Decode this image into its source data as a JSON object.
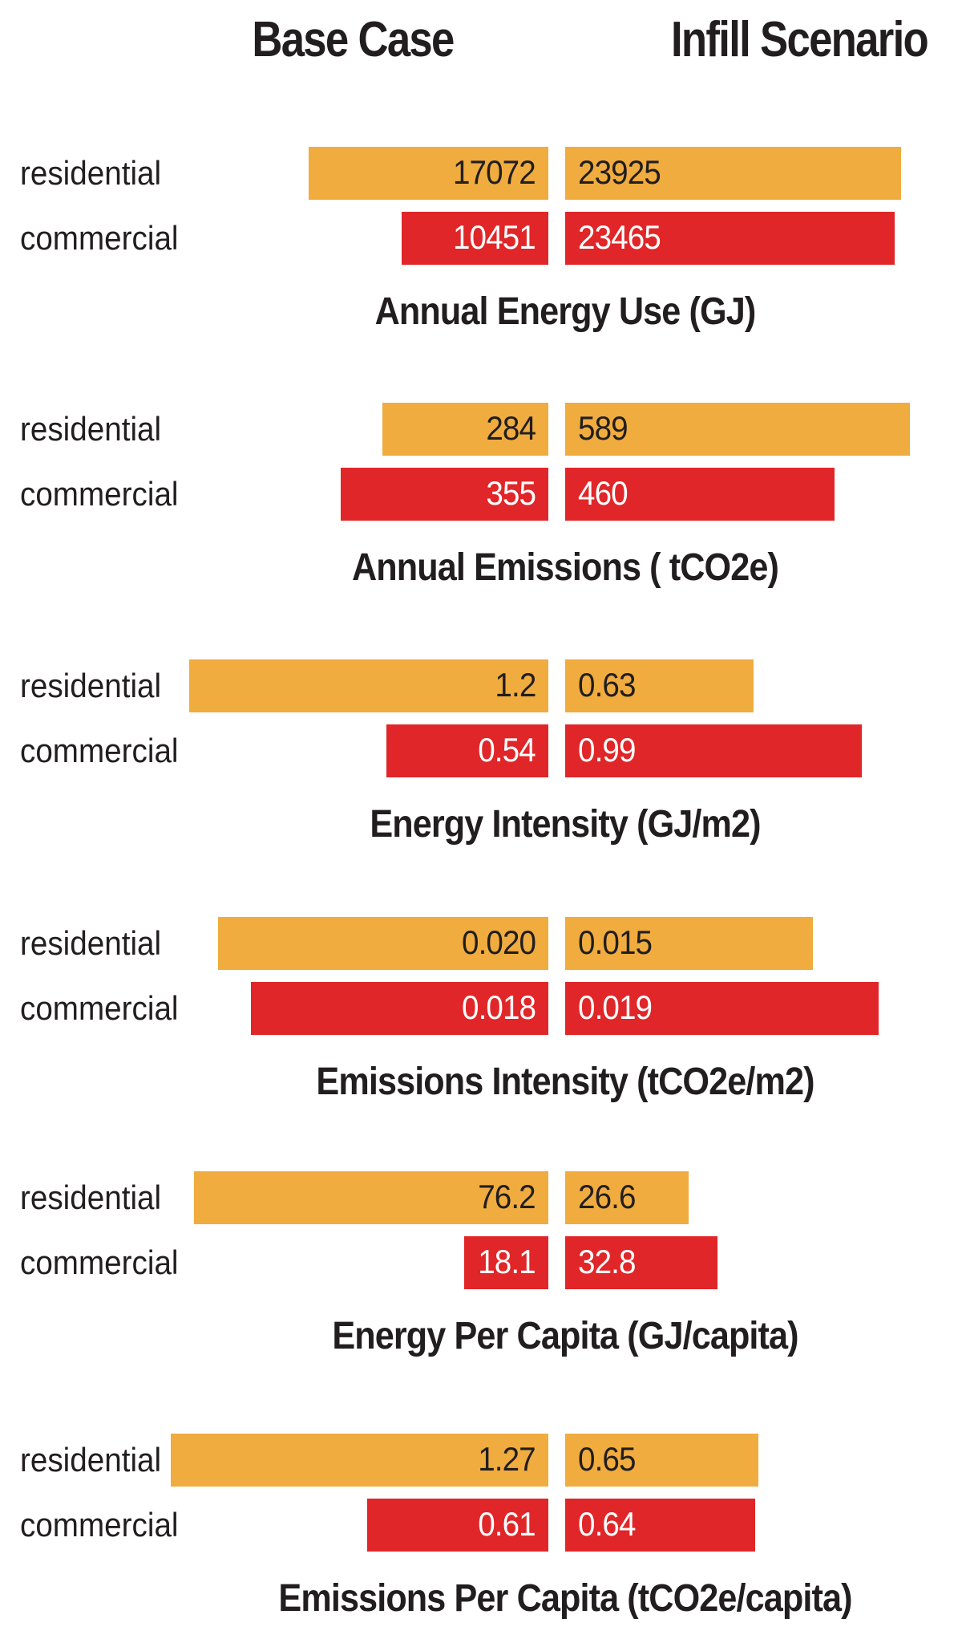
{
  "header": {
    "base_case": "Base Case",
    "infill_scenario": "Infill Scenario"
  },
  "colors": {
    "residential_bar": "#F0AC3F",
    "commercial_bar": "#E02628",
    "dark_text": "#221E1F",
    "light_text": "#FFFFFF"
  },
  "chart_data": {
    "type": "bar",
    "variant": "diverging-horizontal-comparison",
    "columns": [
      "Base Case",
      "Infill Scenario"
    ],
    "row_labels": [
      "residential",
      "commercial"
    ],
    "legend_position": "none",
    "grid": false,
    "layout_hint": "base-case bars grow leftward from center axis, infill bars grow rightward; each section independently scaled to its max value",
    "sections": [
      {
        "title": "Annual Energy Use (GJ)",
        "rows": [
          {
            "label": "residential",
            "base_case": {
              "value": 17072,
              "display": "17072"
            },
            "infill_scenario": {
              "value": 23925,
              "display": "23925"
            }
          },
          {
            "label": "commercial",
            "base_case": {
              "value": 10451,
              "display": "10451"
            },
            "infill_scenario": {
              "value": 23465,
              "display": "23465"
            }
          }
        ]
      },
      {
        "title": "Annual Emissions ( tCO2e)",
        "rows": [
          {
            "label": "residential",
            "base_case": {
              "value": 284,
              "display": "284"
            },
            "infill_scenario": {
              "value": 589,
              "display": "589"
            }
          },
          {
            "label": "commercial",
            "base_case": {
              "value": 355,
              "display": "355"
            },
            "infill_scenario": {
              "value": 460,
              "display": "460"
            }
          }
        ]
      },
      {
        "title": "Energy Intensity (GJ/m2)",
        "rows": [
          {
            "label": "residential",
            "base_case": {
              "value": 1.2,
              "display": "1.2"
            },
            "infill_scenario": {
              "value": 0.63,
              "display": "0.63"
            }
          },
          {
            "label": "commercial",
            "base_case": {
              "value": 0.54,
              "display": "0.54"
            },
            "infill_scenario": {
              "value": 0.99,
              "display": "0.99"
            }
          }
        ]
      },
      {
        "title": "Emissions Intensity (tCO2e/m2)",
        "rows": [
          {
            "label": "residential",
            "base_case": {
              "value": 0.02,
              "display": "0.020"
            },
            "infill_scenario": {
              "value": 0.015,
              "display": "0.015"
            }
          },
          {
            "label": "commercial",
            "base_case": {
              "value": 0.018,
              "display": "0.018"
            },
            "infill_scenario": {
              "value": 0.019,
              "display": "0.019"
            }
          }
        ]
      },
      {
        "title": "Energy Per Capita (GJ/capita)",
        "rows": [
          {
            "label": "residential",
            "base_case": {
              "value": 76.2,
              "display": "76.2"
            },
            "infill_scenario": {
              "value": 26.6,
              "display": "26.6"
            }
          },
          {
            "label": "commercial",
            "base_case": {
              "value": 18.1,
              "display": "18.1"
            },
            "infill_scenario": {
              "value": 32.8,
              "display": "32.8"
            }
          }
        ]
      },
      {
        "title": "Emissions Per Capita (tCO2e/capita)",
        "rows": [
          {
            "label": "residential",
            "base_case": {
              "value": 1.27,
              "display": "1.27"
            },
            "infill_scenario": {
              "value": 0.65,
              "display": "0.65"
            }
          },
          {
            "label": "commercial",
            "base_case": {
              "value": 0.61,
              "display": "0.61"
            },
            "infill_scenario": {
              "value": 0.64,
              "display": "0.64"
            }
          }
        ]
      }
    ]
  }
}
